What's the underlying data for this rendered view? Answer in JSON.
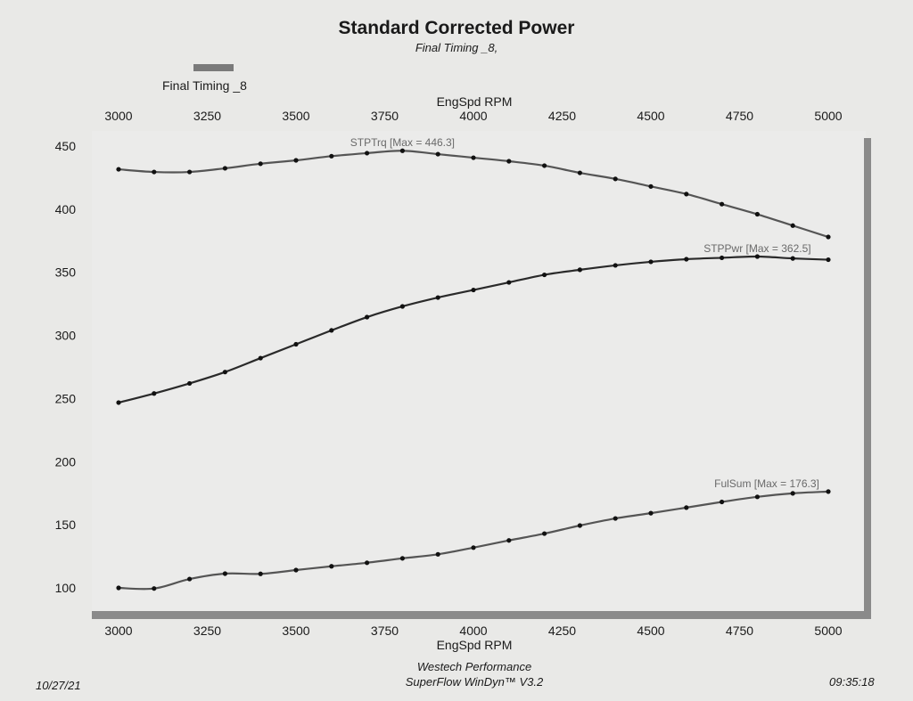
{
  "chart_data": {
    "type": "line",
    "title": "Standard Corrected Power",
    "subtitle": "Final Timing _8,",
    "legend": [
      {
        "label": "Final Timing _8",
        "color": "#7a7a7a"
      }
    ],
    "legend_placement": "top-left",
    "xlabel": "EngSpd RPM",
    "xlabel_top": "EngSpd RPM",
    "xlim": [
      3000,
      5000
    ],
    "ylim": [
      100,
      450
    ],
    "xticks": [
      3000,
      3250,
      3500,
      3750,
      4000,
      4250,
      4500,
      4750,
      5000
    ],
    "yticks": [
      100,
      150,
      200,
      250,
      300,
      350,
      400,
      450
    ],
    "grid": false,
    "x": [
      3000,
      3100,
      3200,
      3300,
      3400,
      3500,
      3600,
      3700,
      3800,
      3900,
      4000,
      4100,
      4200,
      4300,
      4400,
      4500,
      4600,
      4700,
      4800,
      4900,
      5000
    ],
    "series": [
      {
        "name": "STPTrq",
        "max_label": "STPTrq [Max = 446.3]",
        "color": "#555555",
        "values": [
          431.6,
          429.5,
          429.5,
          432.4,
          436.0,
          438.7,
          442.0,
          444.4,
          446.3,
          443.6,
          440.8,
          438.0,
          434.5,
          428.8,
          424.0,
          418.0,
          412.0,
          404.0,
          396.0,
          387.0,
          378.0
        ]
      },
      {
        "name": "STPPwr",
        "max_label": "STPPwr [Max = 362.5]",
        "color": "#2a2a2a",
        "values": [
          246.8,
          254.0,
          262.0,
          271.0,
          282.0,
          293.0,
          304.0,
          314.5,
          323.0,
          330.0,
          336.0,
          342.0,
          348.0,
          352.0,
          355.5,
          358.3,
          360.4,
          361.5,
          362.5,
          361.0,
          360.0
        ]
      },
      {
        "name": "FulSum",
        "max_label": "FulSum [Max = 176.3]",
        "color": "#555555",
        "values": [
          100.0,
          99.5,
          107.0,
          111.3,
          111.1,
          114.1,
          117.1,
          119.9,
          123.4,
          126.6,
          131.9,
          137.6,
          143.0,
          149.4,
          155.0,
          159.2,
          163.6,
          168.1,
          172.1,
          174.9,
          176.3
        ]
      }
    ]
  },
  "footer": {
    "company": "Westech Performance",
    "software": "SuperFlow WinDyn™ V3.2",
    "date": "10/27/21",
    "time": "09:35:18"
  },
  "colors": {
    "background": "#e9e9e7",
    "plot_background": "#ebebea",
    "frame_shadow": "#8a8a8a"
  }
}
